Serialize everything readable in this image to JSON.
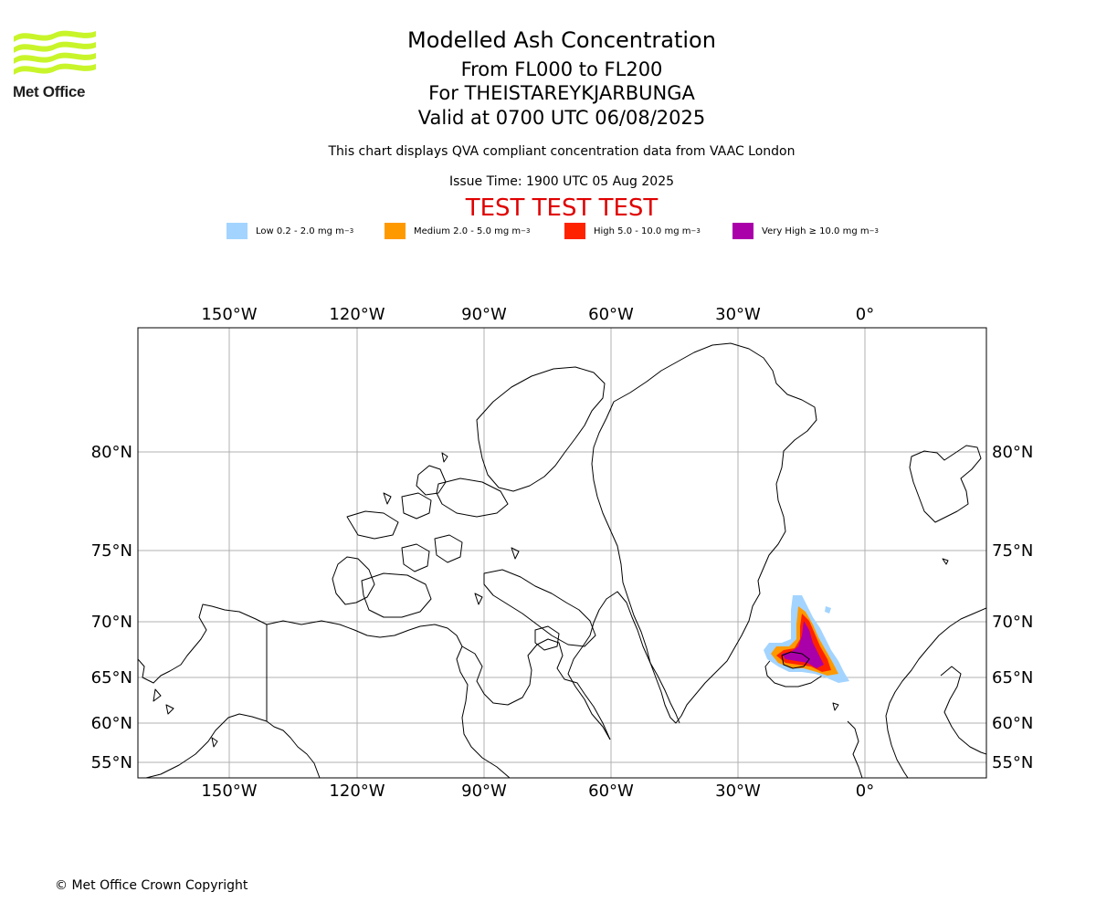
{
  "logo": {
    "name": "Met Office"
  },
  "header": {
    "title": "Modelled Ash Concentration",
    "levels": "From FL000 to FL200",
    "volcano": "For THEISTAREYKJARBUNGA",
    "valid": "Valid at 0700 UTC 06/08/2025",
    "info": "This chart displays QVA compliant concentration data from VAAC London",
    "issue": "Issue Time: 1900 UTC 05 Aug 2025",
    "test": "TEST TEST TEST"
  },
  "legend": {
    "items": [
      {
        "label": "Low 0.2 - 2.0 mg m",
        "unit_sup": "−3",
        "color": "#a3d4ff"
      },
      {
        "label": "Medium 2.0 - 5.0 mg m",
        "unit_sup": "−3",
        "color": "#ff9900"
      },
      {
        "label": "High 5.0 - 10.0 mg m",
        "unit_sup": "−3",
        "color": "#ff2200"
      },
      {
        "label": "Very High ≥ 10.0 mg m",
        "unit_sup": "−3",
        "color": "#aa00aa"
      }
    ]
  },
  "map": {
    "lon_labels": [
      "150°W",
      "120°W",
      "90°W",
      "60°W",
      "30°W",
      "0°"
    ],
    "lat_labels": [
      "80°N",
      "75°N",
      "70°N",
      "65°N",
      "60°N",
      "55°N"
    ],
    "colors": {
      "grid": "#b0b0b0",
      "coast": "#000000"
    }
  },
  "footer": {
    "copyright": "© Met Office Crown Copyright"
  }
}
